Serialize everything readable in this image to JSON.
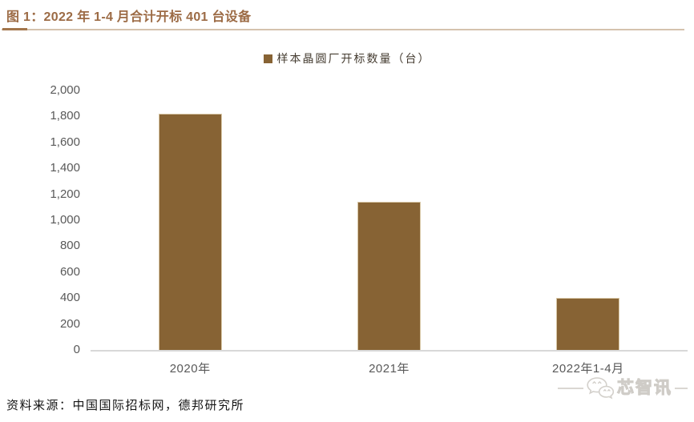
{
  "header": {
    "title": "图 1：2022 年 1-4 月合计开标 401 台设备"
  },
  "legend": {
    "label": "样本晶圆厂开标数量（台）"
  },
  "chart_data": {
    "type": "bar",
    "title": "2022 年 1-4 月合计开标 401 台设备",
    "categories": [
      "2020年",
      "2021年",
      "2022年1-4月"
    ],
    "series": [
      {
        "name": "样本晶圆厂开标数量（台）",
        "values": [
          1820,
          1145,
          401
        ]
      }
    ],
    "xlabel": "",
    "ylabel": "",
    "ylim": [
      0,
      2000
    ],
    "ytick_step": 200,
    "grid": false,
    "legend_position": "top-center",
    "bar_color": "#876334"
  },
  "footer": {
    "source": "资料来源：中国国际招标网，德邦研究所"
  },
  "watermark": {
    "text": "芯智讯"
  },
  "colors": {
    "title_text": "#9C6B45",
    "rule_light": "#D5C2AD",
    "rule_dark": "#A3764C",
    "bar": "#876334",
    "bar_border": "#D8C7A6",
    "axis_text": "#595959",
    "axis_line": "#D8D8D8",
    "source_text": "#141414",
    "watermark": "#D5D2CD"
  }
}
